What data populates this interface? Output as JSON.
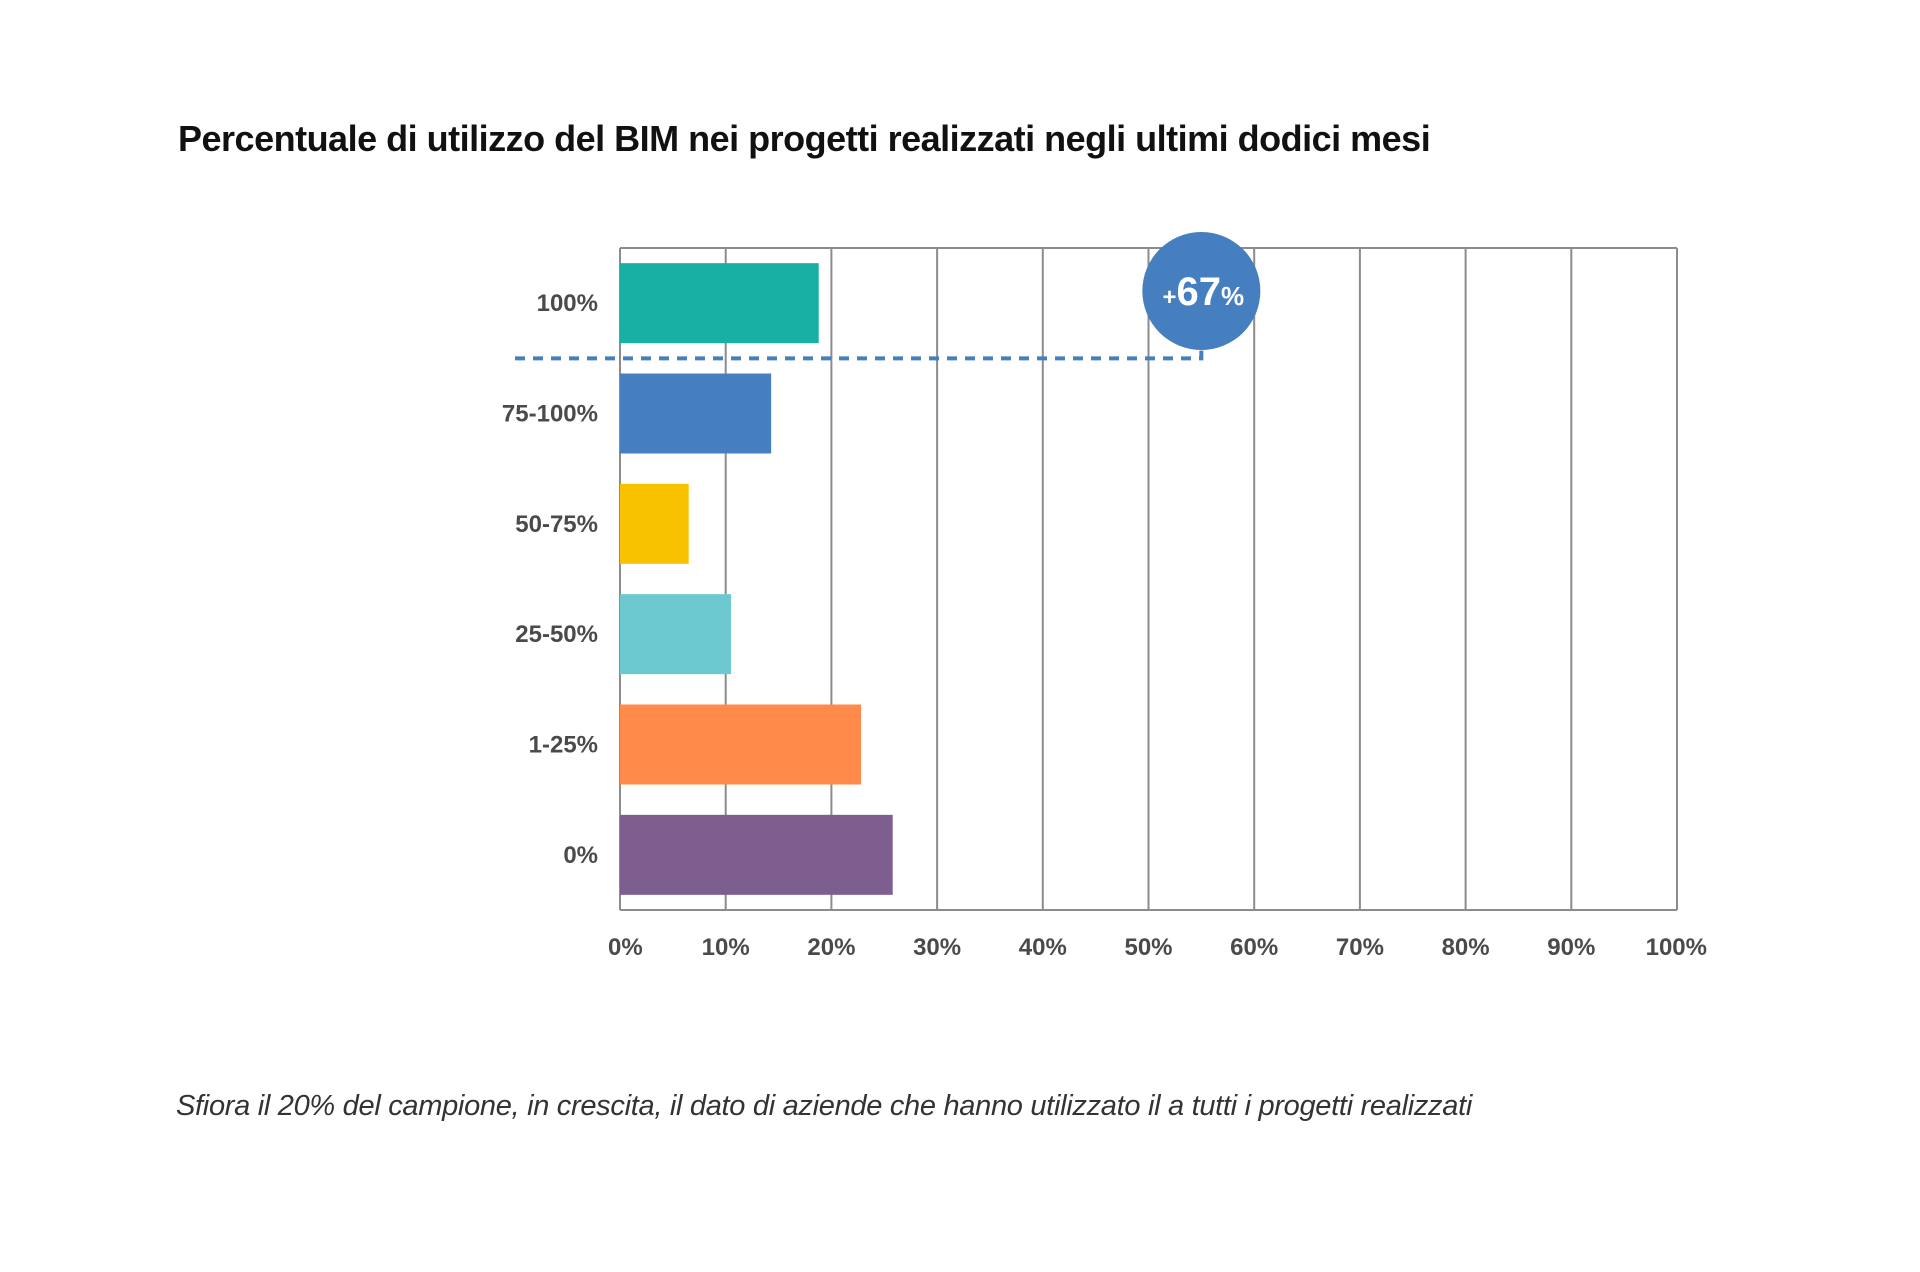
{
  "chart_data": {
    "type": "bar",
    "orientation": "horizontal",
    "title": "Percentuale di utilizzo del BIM nei progetti realizzati negli ultimi dodici mesi",
    "categories": [
      "100%",
      "75-100%",
      "50-75%",
      "25-50%",
      "1-25%",
      "0%"
    ],
    "values": [
      18.8,
      14.3,
      6.5,
      10.5,
      22.8,
      25.8
    ],
    "colors": [
      "#18b0a5",
      "#457fc0",
      "#f8c200",
      "#6cc9cf",
      "#ff8a4a",
      "#7d5e8f"
    ],
    "xlim": [
      0,
      100
    ],
    "x_ticks": [
      "0%",
      "10%",
      "20%",
      "30%",
      "40%",
      "50%",
      "60%",
      "70%",
      "80%",
      "90%",
      "100%"
    ],
    "grid": true,
    "annotation": {
      "sign": "+",
      "number": "67",
      "unit": "%",
      "color": "#457fc0",
      "x_value": 55
    }
  },
  "caption": "Sfiora il 20% del campione, in crescita, il dato di aziende che hanno utilizzato il a tutti i progetti realizzati"
}
